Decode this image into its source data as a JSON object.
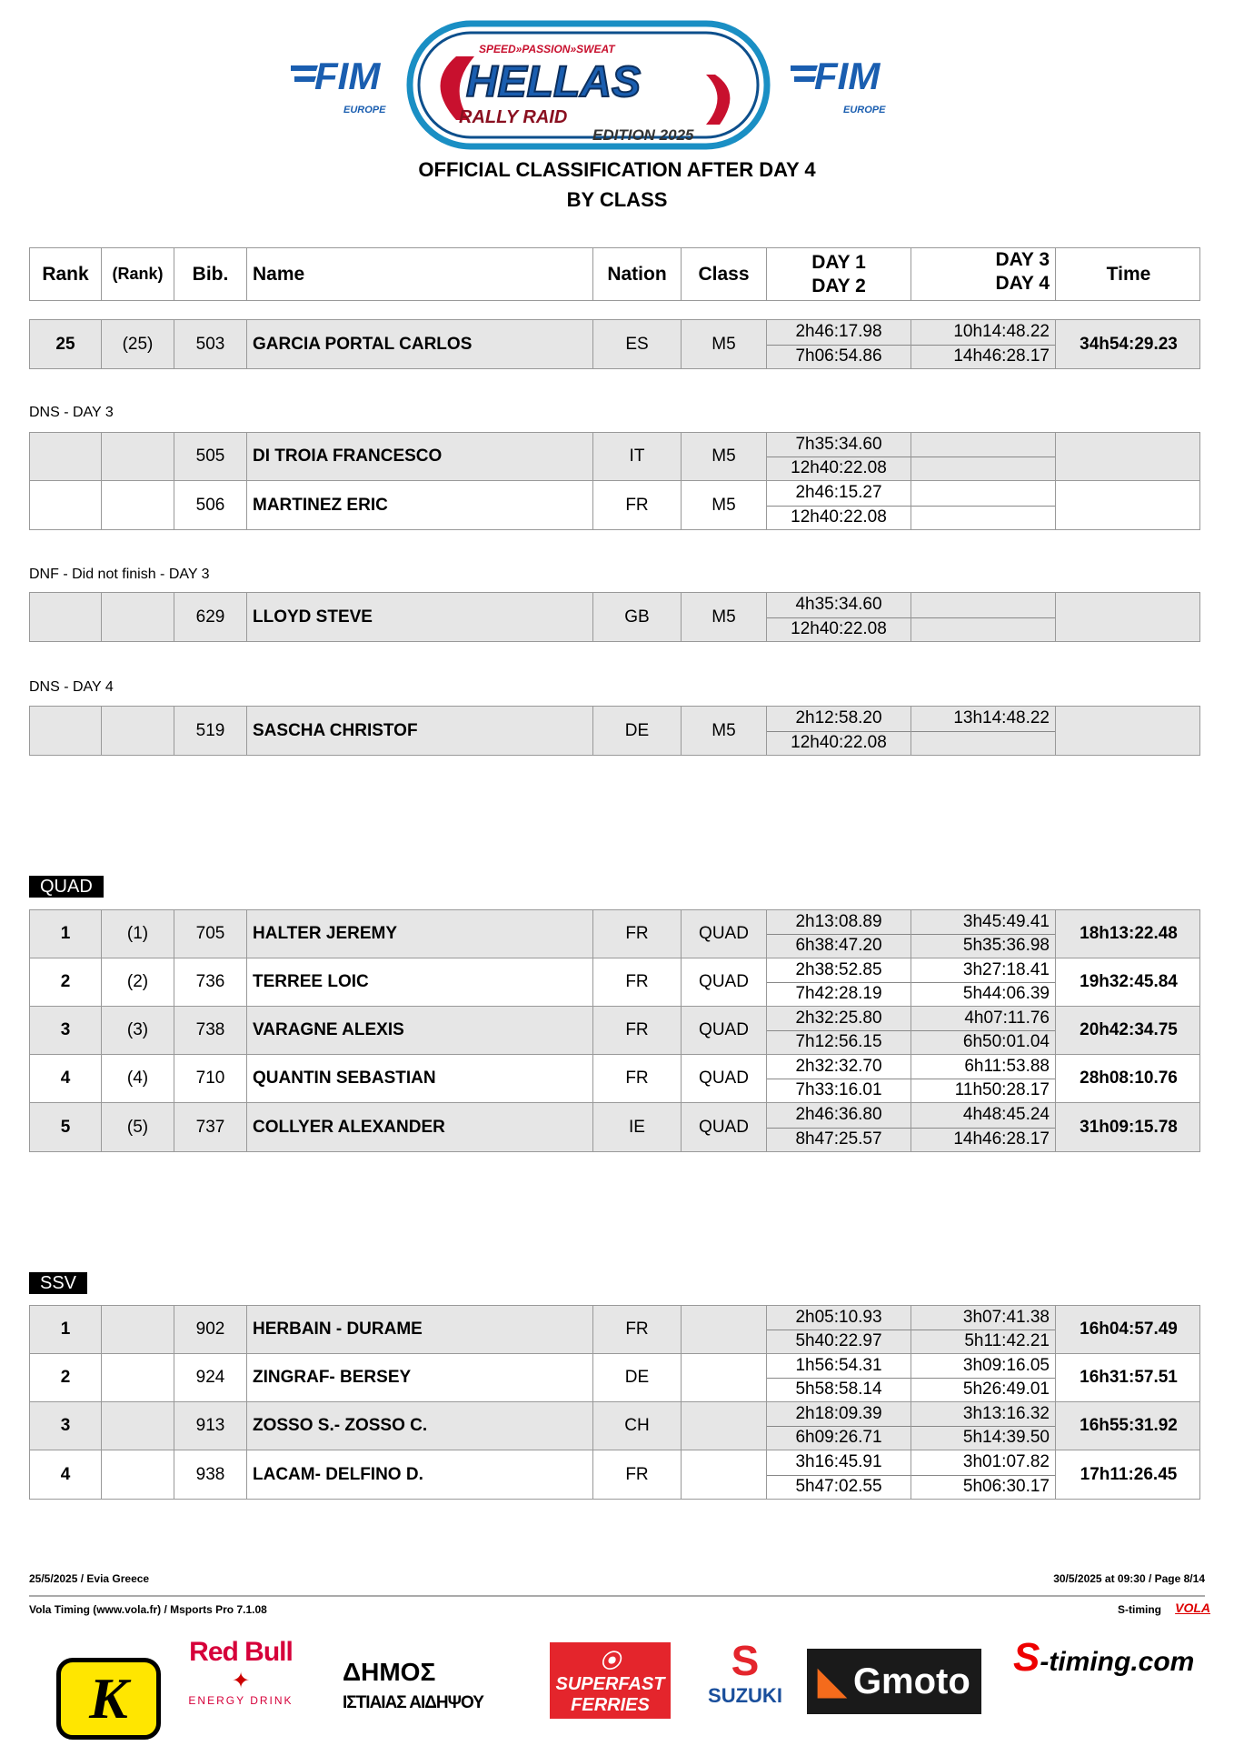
{
  "header": {
    "logo_left": "FIM EUROPE",
    "logo_center": "SPEED»PASSION»SWEAT HELLAS RALLY RAID EDITION 2025",
    "logo_right": "FIM EUROPE",
    "title": "OFFICIAL CLASSIFICATION AFTER DAY 4",
    "subtitle": "BY CLASS"
  },
  "columns": {
    "rank": "Rank",
    "prev_rank": "(Rank)",
    "bib": "Bib.",
    "name": "Name",
    "nation": "Nation",
    "class": "Class",
    "day1": "DAY 1",
    "day2": "DAY 2",
    "day3": "DAY 3",
    "day4": "DAY 4",
    "time": "Time"
  },
  "sections": [
    {
      "label": "",
      "badge": "",
      "rows": [
        {
          "rank": "25",
          "prev_rank": "(25)",
          "bib": "503",
          "name": "GARCIA PORTAL CARLOS",
          "nation": "ES",
          "class": "M5",
          "day1": "2h46:17.98",
          "day2": "7h06:54.86",
          "day3": "10h14:48.22",
          "day4": "14h46:28.17",
          "time": "34h54:29.23"
        }
      ]
    },
    {
      "label": "DNS - DAY 3",
      "badge": "",
      "rows": [
        {
          "rank": "",
          "prev_rank": "",
          "bib": "505",
          "name": "DI TROIA FRANCESCO",
          "nation": "IT",
          "class": "M5",
          "day1": "7h35:34.60",
          "day2": "12h40:22.08",
          "day3": "",
          "day4": "",
          "time": ""
        },
        {
          "rank": "",
          "prev_rank": "",
          "bib": "506",
          "name": "MARTINEZ ERIC",
          "nation": "FR",
          "class": "M5",
          "day1": "2h46:15.27",
          "day2": "12h40:22.08",
          "day3": "",
          "day4": "",
          "time": ""
        }
      ]
    },
    {
      "label": "DNF - Did not finish - DAY 3",
      "badge": "",
      "rows": [
        {
          "rank": "",
          "prev_rank": "",
          "bib": "629",
          "name": "LLOYD STEVE",
          "nation": "GB",
          "class": "M5",
          "day1": "4h35:34.60",
          "day2": "12h40:22.08",
          "day3": "",
          "day4": "",
          "time": ""
        }
      ]
    },
    {
      "label": "DNS - DAY 4",
      "badge": "",
      "rows": [
        {
          "rank": "",
          "prev_rank": "",
          "bib": "519",
          "name": "SASCHA CHRISTOF",
          "nation": "DE",
          "class": "M5",
          "day1": "2h12:58.20",
          "day2": "12h40:22.08",
          "day3": "13h14:48.22",
          "day4": "",
          "time": ""
        }
      ]
    },
    {
      "label": "",
      "badge": "QUAD",
      "rows": [
        {
          "rank": "1",
          "prev_rank": "(1)",
          "bib": "705",
          "name": "HALTER JEREMY",
          "nation": "FR",
          "class": "QUAD",
          "day1": "2h13:08.89",
          "day2": "6h38:47.20",
          "day3": "3h45:49.41",
          "day4": "5h35:36.98",
          "time": "18h13:22.48"
        },
        {
          "rank": "2",
          "prev_rank": "(2)",
          "bib": "736",
          "name": "TERREE LOIC",
          "nation": "FR",
          "class": "QUAD",
          "day1": "2h38:52.85",
          "day2": "7h42:28.19",
          "day3": "3h27:18.41",
          "day4": "5h44:06.39",
          "time": "19h32:45.84"
        },
        {
          "rank": "3",
          "prev_rank": "(3)",
          "bib": "738",
          "name": "VARAGNE ALEXIS",
          "nation": "FR",
          "class": "QUAD",
          "day1": "2h32:25.80",
          "day2": "7h12:56.15",
          "day3": "4h07:11.76",
          "day4": "6h50:01.04",
          "time": "20h42:34.75"
        },
        {
          "rank": "4",
          "prev_rank": "(4)",
          "bib": "710",
          "name": "QUANTIN SEBASTIAN",
          "nation": "FR",
          "class": "QUAD",
          "day1": "2h32:32.70",
          "day2": "7h33:16.01",
          "day3": "6h11:53.88",
          "day4": "11h50:28.17",
          "time": "28h08:10.76"
        },
        {
          "rank": "5",
          "prev_rank": "(5)",
          "bib": "737",
          "name": "COLLYER ALEXANDER",
          "nation": "IE",
          "class": "QUAD",
          "day1": "2h46:36.80",
          "day2": "8h47:25.57",
          "day3": "4h48:45.24",
          "day4": "14h46:28.17",
          "time": "31h09:15.78"
        }
      ]
    },
    {
      "label": "",
      "badge": "SSV",
      "rows": [
        {
          "rank": "1",
          "prev_rank": "",
          "bib": "902",
          "name": "HERBAIN - DURAME",
          "nation": "FR",
          "class": "",
          "day1": "2h05:10.93",
          "day2": "5h40:22.97",
          "day3": "3h07:41.38",
          "day4": "5h11:42.21",
          "time": "16h04:57.49"
        },
        {
          "rank": "2",
          "prev_rank": "",
          "bib": "924",
          "name": "ZINGRAF- BERSEY",
          "nation": "DE",
          "class": "",
          "day1": "1h56:54.31",
          "day2": "5h58:58.14",
          "day3": "3h09:16.05",
          "day4": "5h26:49.01",
          "time": "16h31:57.51"
        },
        {
          "rank": "3",
          "prev_rank": "",
          "bib": "913",
          "name": "ZOSSO S.- ZOSSO C.",
          "nation": "CH",
          "class": "",
          "day1": "2h18:09.39",
          "day2": "6h09:26.71",
          "day3": "3h13:16.32",
          "day4": "5h14:39.50",
          "time": "16h55:31.92"
        },
        {
          "rank": "4",
          "prev_rank": "",
          "bib": "938",
          "name": "LACAM- DELFINO D.",
          "nation": "FR",
          "class": "",
          "day1": "3h16:45.91",
          "day2": "5h47:02.55",
          "day3": "3h01:07.82",
          "day4": "5h06:30.17",
          "time": "17h11:26.45"
        }
      ]
    }
  ],
  "footer": {
    "left_top": "25/5/2025  /  Evia  Greece",
    "right_top": "30/5/2025 at 09:30  /  Page 8/14",
    "left_bottom": "Vola Timing (www.vola.fr) / Msports Pro 7.1.08",
    "right_bottom": "S-timing",
    "vola_logo": "VOLA",
    "sponsors": [
      "K",
      "Red Bull ENERGY DRINK",
      "ΔΗΜΟΣ ΙΣΤΙΑΙΑΣ ΑΙΔΗΨΟΥ",
      "SUPERFAST FERRIES",
      "SUZUKI",
      "Gmoto",
      "S-timing.com"
    ]
  },
  "colors": {
    "fim_blue": "#1a5eb0",
    "hellas_red": "#c8102e",
    "row_shade": "#e6e6e6"
  }
}
